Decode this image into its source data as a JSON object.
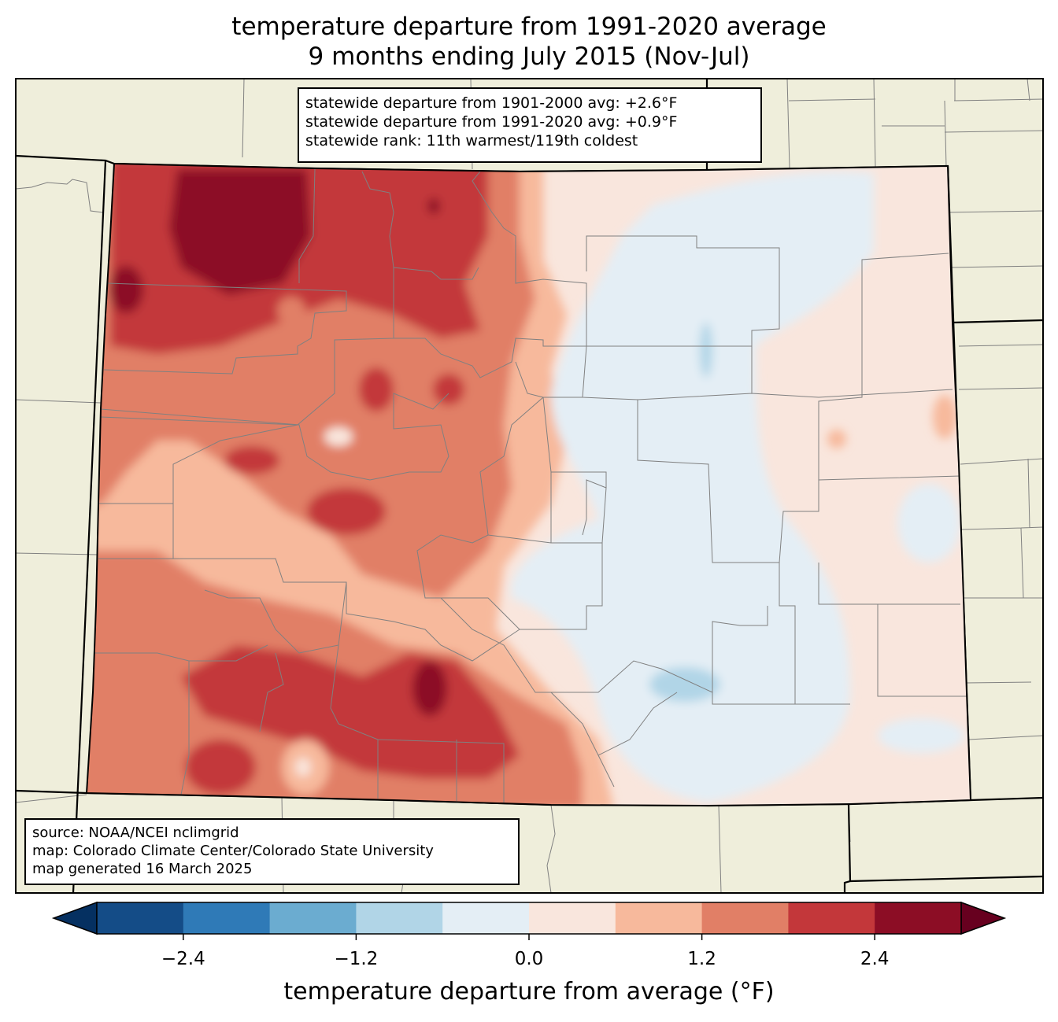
{
  "title": {
    "line1": "temperature departure from 1991-2020 average",
    "line2": "9 months ending July 2015 (Nov-Jul)"
  },
  "stats_box": {
    "line1": "statewide departure from 1901-2000 avg: +2.6°F",
    "line2": "statewide departure from 1991-2020 avg: +0.9°F",
    "line3": "statewide rank: 11th warmest/119th coldest"
  },
  "source_box": {
    "line1": "source: NOAA/NCEI nclimgrid",
    "line2": "map: Colorado Climate Center/Colorado State University",
    "line3": "map generated 16 March 2025"
  },
  "colorbar": {
    "label": "temperature departure from average (°F)",
    "ticks": [
      "−2.4",
      "−1.2",
      "0.0",
      "1.2",
      "2.4"
    ],
    "bins": [
      {
        "from": -3.0,
        "to": -2.4,
        "color": "#144c87"
      },
      {
        "from": -2.4,
        "to": -1.8,
        "color": "#2f7ab7"
      },
      {
        "from": -1.8,
        "to": -1.2,
        "color": "#6bacd0"
      },
      {
        "from": -1.2,
        "to": -0.6,
        "color": "#b1d5e7"
      },
      {
        "from": -0.6,
        "to": 0.0,
        "color": "#e4eef5"
      },
      {
        "from": 0.0,
        "to": 0.6,
        "color": "#f9e6dd"
      },
      {
        "from": 0.6,
        "to": 1.2,
        "color": "#f7b99c"
      },
      {
        "from": 1.2,
        "to": 1.8,
        "color": "#e17f66"
      },
      {
        "from": 1.8,
        "to": 2.4,
        "color": "#c3373a"
      },
      {
        "from": 2.4,
        "to": 3.0,
        "color": "#8c0d25"
      }
    ],
    "under_color": "#053061",
    "over_color": "#67001f"
  },
  "colors": {
    "land": "#efeedb",
    "state_border": "#000000",
    "county_border": "#808080"
  }
}
